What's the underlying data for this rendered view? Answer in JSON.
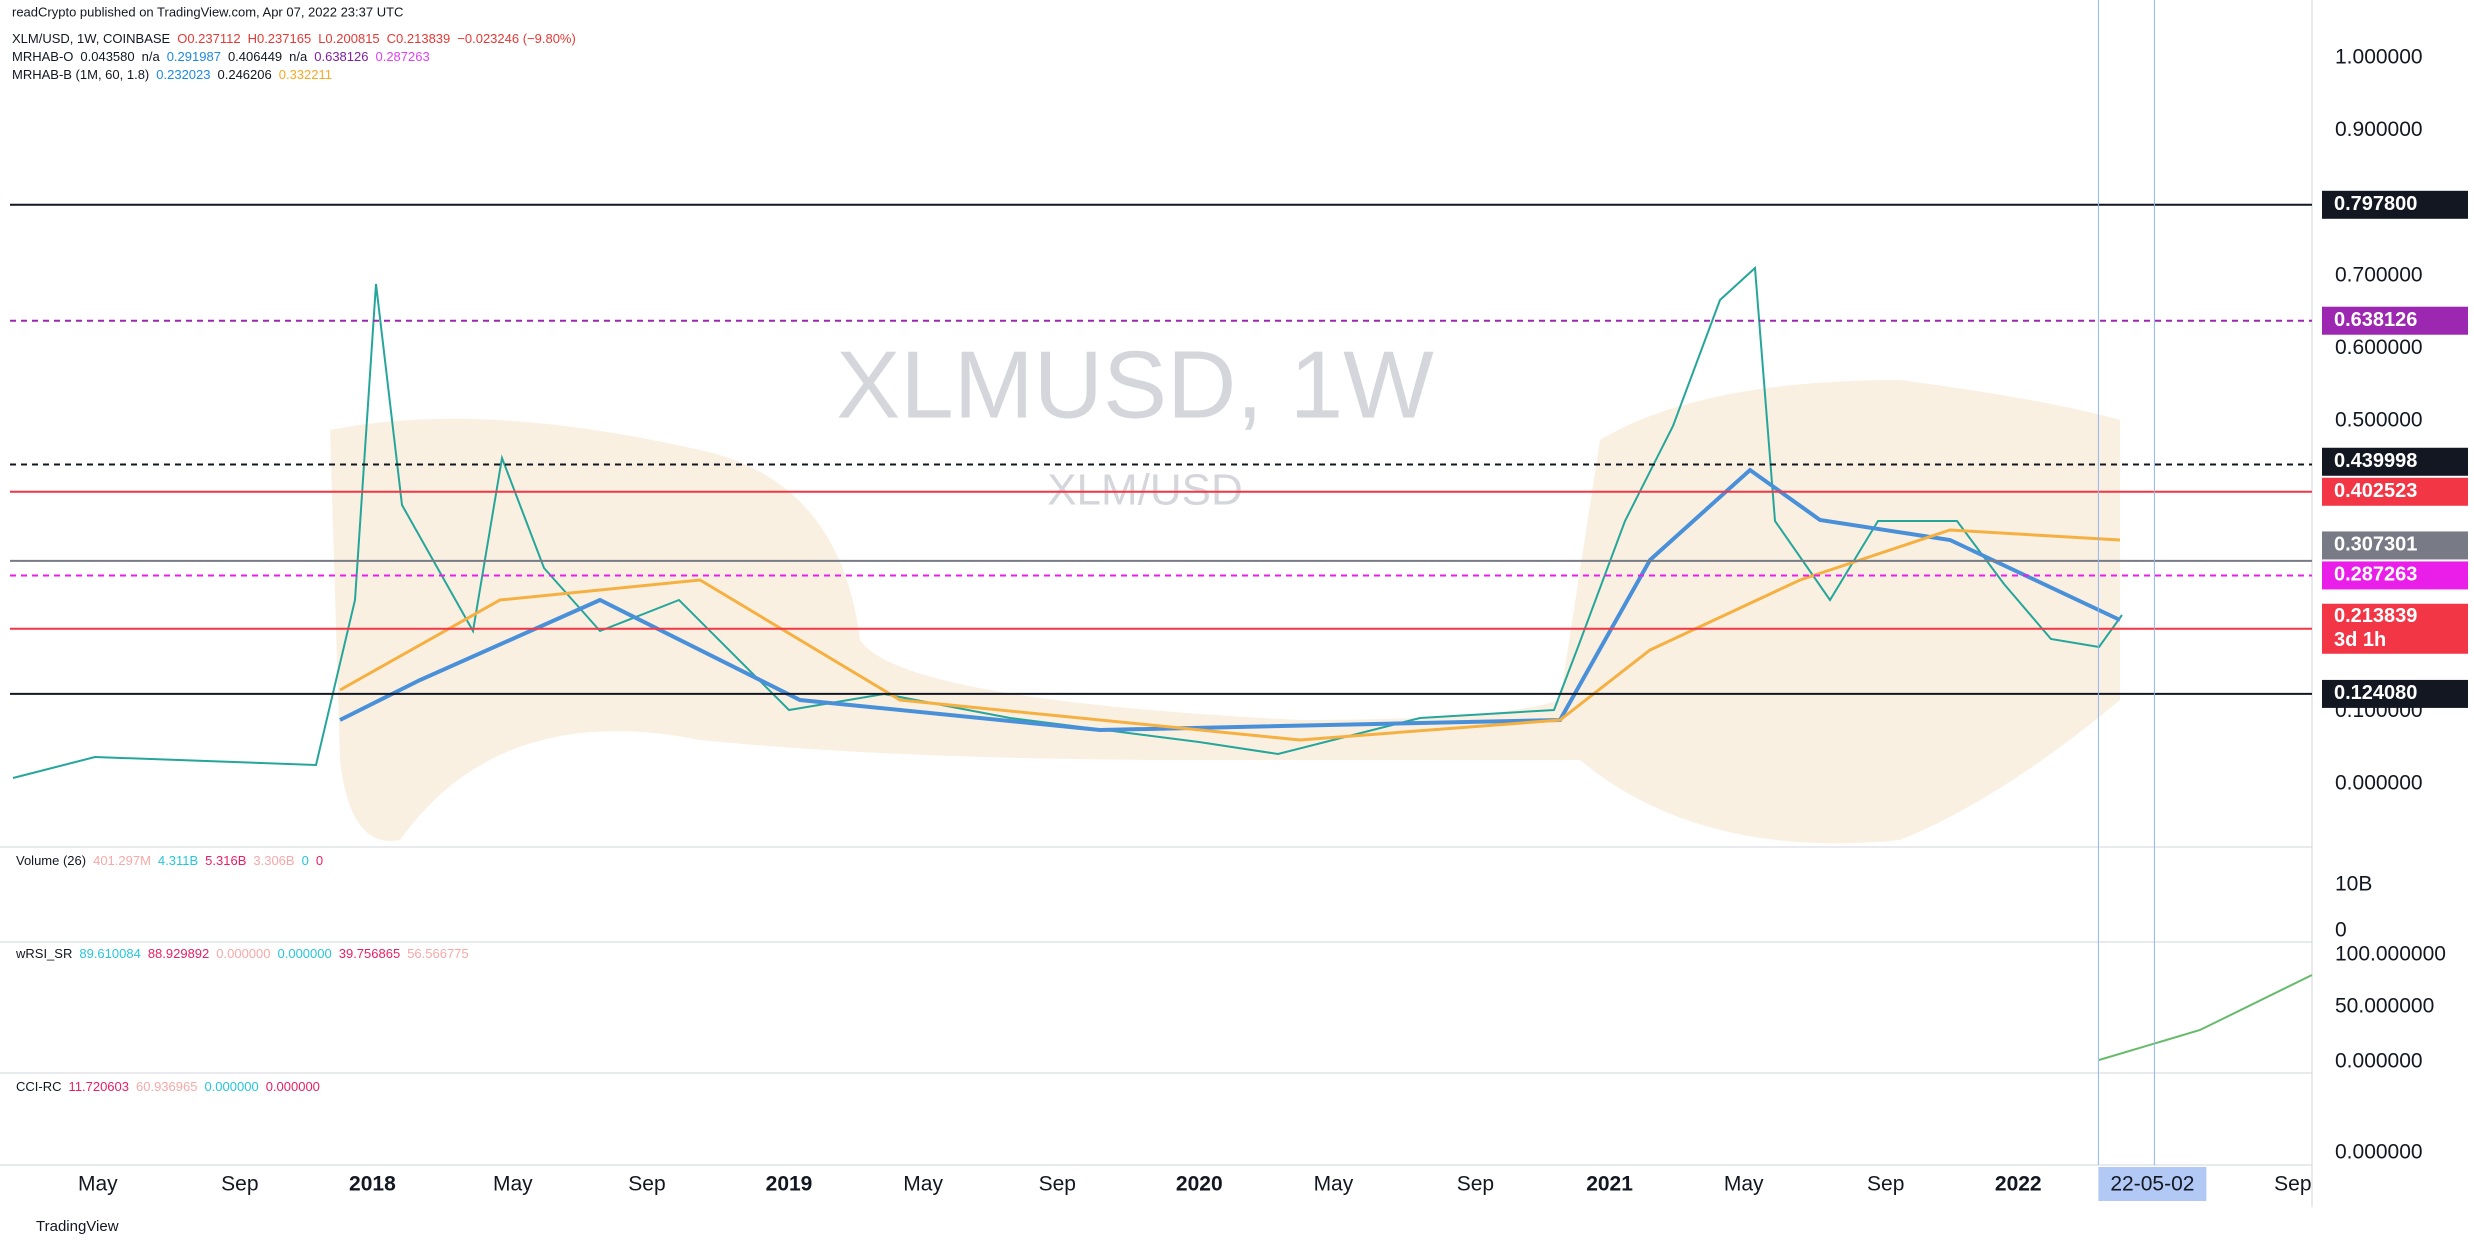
{
  "header": "readCrypto published on TradingView.com, Apr 07, 2022 23:37 UTC",
  "watermark": {
    "symbol": "XLMUSD, 1W",
    "pair": "XLM/USD"
  },
  "legend": [
    {
      "name": "XLM/USD, 1W, COINBASE",
      "items": [
        {
          "text": "O0.237112",
          "color": "#e53935"
        },
        {
          "text": "H0.237165",
          "color": "#e53935"
        },
        {
          "text": "L0.200815",
          "color": "#e53935"
        },
        {
          "text": "C0.213839",
          "color": "#e53935"
        },
        {
          "text": "−0.023246 (−9.80%)",
          "color": "#e53935"
        }
      ]
    },
    {
      "name": "MRHAB-O",
      "items": [
        {
          "text": "0.043580",
          "color": "#131722"
        },
        {
          "text": "n/a",
          "color": "#131722"
        },
        {
          "text": "0.291987",
          "color": "#1e88e5"
        },
        {
          "text": "0.406449",
          "color": "#131722"
        },
        {
          "text": "n/a",
          "color": "#131722"
        },
        {
          "text": "0.638126",
          "color": "#7b1fa2"
        },
        {
          "text": "0.287263",
          "color": "#e040fb"
        }
      ]
    },
    {
      "name": "MRHAB-B (1M, 60, 1.8)",
      "items": [
        {
          "text": "0.232023",
          "color": "#1e88e5"
        },
        {
          "text": "0.246206",
          "color": "#131722"
        },
        {
          "text": "0.332211",
          "color": "#f9a825"
        }
      ]
    }
  ],
  "price_axis": [
    "1.000000",
    "0.900000",
    "0.700000",
    "0.600000",
    "0.500000",
    "0.100000",
    "0.000000"
  ],
  "price_tags": [
    {
      "label": "0.797800",
      "color": "#131722"
    },
    {
      "label": "0.638126",
      "color": "#9c27b0"
    },
    {
      "label": "0.439998",
      "color": "#131722"
    },
    {
      "label": "0.402523",
      "color": "#f23645"
    },
    {
      "label": "0.307301",
      "color": "#787b86"
    },
    {
      "label": "0.287263",
      "color": "#e91ee9"
    },
    {
      "label": "0.213839",
      "sublabel": "3d 1h",
      "color": "#f23645"
    },
    {
      "label": "0.124080",
      "color": "#131722"
    }
  ],
  "panes": [
    {
      "legend": "Volume (26)",
      "values": [
        "401.297M",
        "4.311B",
        "5.316B",
        "3.306B",
        "0",
        "0"
      ],
      "axis": [
        "10B",
        "0"
      ]
    },
    {
      "legend": "wRSI_SR",
      "values": [
        "89.610084",
        "88.929892",
        "0.000000",
        "0.000000",
        "39.756865",
        "56.566775"
      ],
      "axis": [
        "100.000000",
        "50.000000",
        "0.000000"
      ]
    },
    {
      "legend": "CCI-RC",
      "values": [
        "11.720603",
        "60.936965",
        "0.000000",
        "0.000000"
      ],
      "axis": [
        "0.000000"
      ]
    }
  ],
  "time_axis": [
    "May",
    "Sep",
    "2018",
    "May",
    "Sep",
    "2019",
    "May",
    "Sep",
    "2020",
    "May",
    "Sep",
    "2021",
    "May",
    "Sep",
    "2022",
    "22-05-02",
    "Sep"
  ],
  "footer": "TradingView"
}
